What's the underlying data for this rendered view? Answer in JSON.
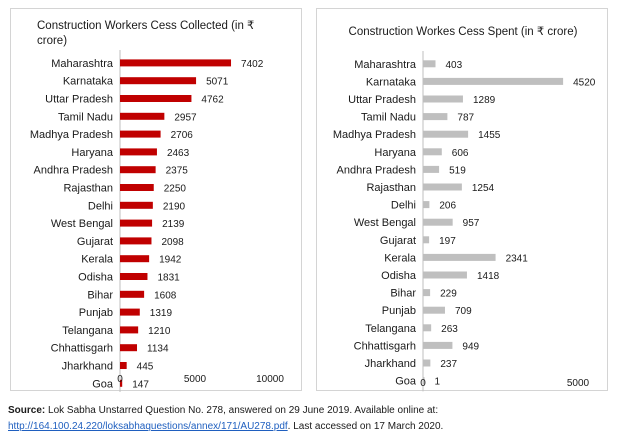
{
  "chart_data": [
    {
      "type": "bar",
      "orientation": "horizontal",
      "title": "Construction Workers Cess Collected (in ₹ crore)",
      "categories": [
        "Maharashtra",
        "Karnataka",
        "Uttar Pradesh",
        "Tamil Nadu",
        "Madhya Pradesh",
        "Haryana",
        "Andhra Pradesh",
        "Rajasthan",
        "Delhi",
        "West Bengal",
        "Gujarat",
        "Kerala",
        "Odisha",
        "Bihar",
        "Punjab",
        "Telangana",
        "Chhattisgarh",
        "Jharkhand",
        "Goa"
      ],
      "values": [
        7402,
        5071,
        4762,
        2957,
        2706,
        2463,
        2375,
        2250,
        2190,
        2139,
        2098,
        1942,
        1831,
        1608,
        1319,
        1210,
        1134,
        445,
        147
      ],
      "xlim": [
        0,
        10000
      ],
      "xticks": [
        "0",
        "5000",
        "10000"
      ],
      "color": "#c00000",
      "grid": false,
      "legend": "none"
    },
    {
      "type": "bar",
      "orientation": "horizontal",
      "title": "Construction Workes Cess Spent (in ₹ crore)",
      "categories": [
        "Maharashtra",
        "Karnataka",
        "Uttar Pradesh",
        "Tamil Nadu",
        "Madhya Pradesh",
        "Haryana",
        "Andhra Pradesh",
        "Rajasthan",
        "Delhi",
        "West Bengal",
        "Gujarat",
        "Kerala",
        "Odisha",
        "Bihar",
        "Punjab",
        "Telangana",
        "Chhattisgarh",
        "Jharkhand",
        "Goa"
      ],
      "values": [
        403,
        4520,
        1289,
        787,
        1455,
        606,
        519,
        1254,
        206,
        957,
        197,
        2341,
        1418,
        229,
        709,
        263,
        949,
        237,
        1
      ],
      "xlim": [
        0,
        5000
      ],
      "xticks": [
        "0",
        "5000"
      ],
      "color": "#bfbfbf",
      "grid": false,
      "legend": "none"
    }
  ],
  "source": {
    "label": "Source:",
    "text": " Lok Sabha Unstarred Question No. 278, answered on 29 June 2019. Available online at:",
    "link": "http://164.100.24.220/loksabhaquestions/annex/171/AU278.pdf",
    "suffix": ". Last accessed on 17 March 2020."
  }
}
